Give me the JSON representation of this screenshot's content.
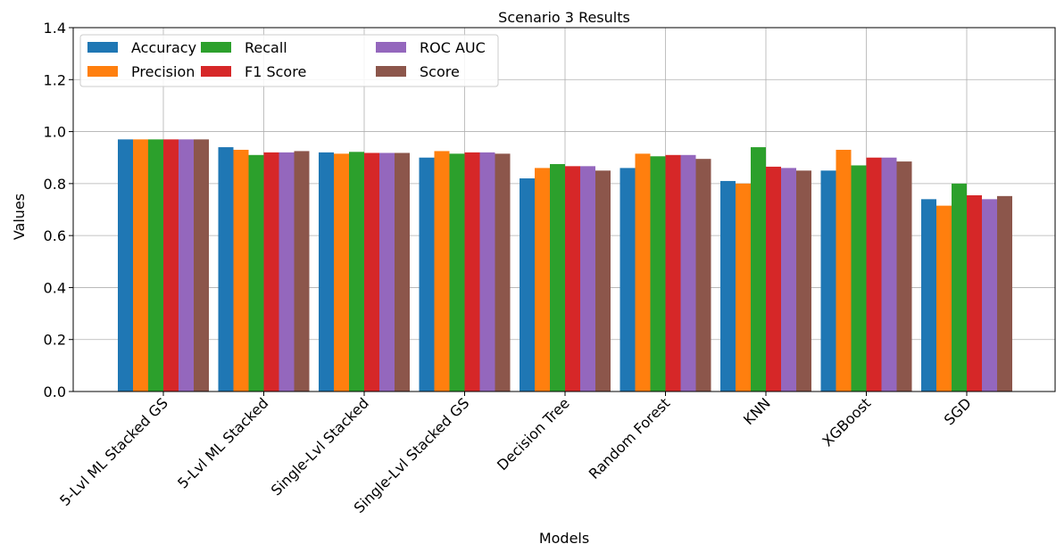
{
  "chart_data": {
    "type": "bar",
    "title": "Scenario 3 Results",
    "xlabel": "Models",
    "ylabel": "Values",
    "ylim": [
      0,
      1.4
    ],
    "yticks": [
      "0.0",
      "0.2",
      "0.4",
      "0.6",
      "0.8",
      "1.0",
      "1.2",
      "1.4"
    ],
    "grid": true,
    "legend_position": "top-left",
    "categories": [
      "5-Lvl ML Stacked GS",
      "5-Lvl ML Stacked",
      "Single-Lvl Stacked",
      "Single-Lvl Stacked GS",
      "Decision Tree",
      "Random Forest",
      "KNN",
      "XGBoost",
      "SGD"
    ],
    "series": [
      {
        "name": "Accuracy",
        "color": "#1f77b4",
        "values": [
          0.97,
          0.94,
          0.92,
          0.9,
          0.82,
          0.86,
          0.81,
          0.85,
          0.74
        ]
      },
      {
        "name": "Precision",
        "color": "#ff7f0e",
        "values": [
          0.97,
          0.93,
          0.915,
          0.925,
          0.86,
          0.915,
          0.8,
          0.93,
          0.715
        ]
      },
      {
        "name": "Recall",
        "color": "#2ca02c",
        "values": [
          0.97,
          0.91,
          0.922,
          0.915,
          0.875,
          0.905,
          0.94,
          0.87,
          0.8
        ]
      },
      {
        "name": "F1 Score",
        "color": "#d62728",
        "values": [
          0.97,
          0.92,
          0.918,
          0.92,
          0.867,
          0.91,
          0.865,
          0.9,
          0.755
        ]
      },
      {
        "name": "ROC AUC",
        "color": "#9467bd",
        "values": [
          0.97,
          0.92,
          0.918,
          0.92,
          0.867,
          0.91,
          0.86,
          0.9,
          0.74
        ]
      },
      {
        "name": "Score",
        "color": "#8c564b",
        "values": [
          0.97,
          0.925,
          0.918,
          0.915,
          0.85,
          0.895,
          0.85,
          0.885,
          0.752
        ]
      }
    ]
  }
}
